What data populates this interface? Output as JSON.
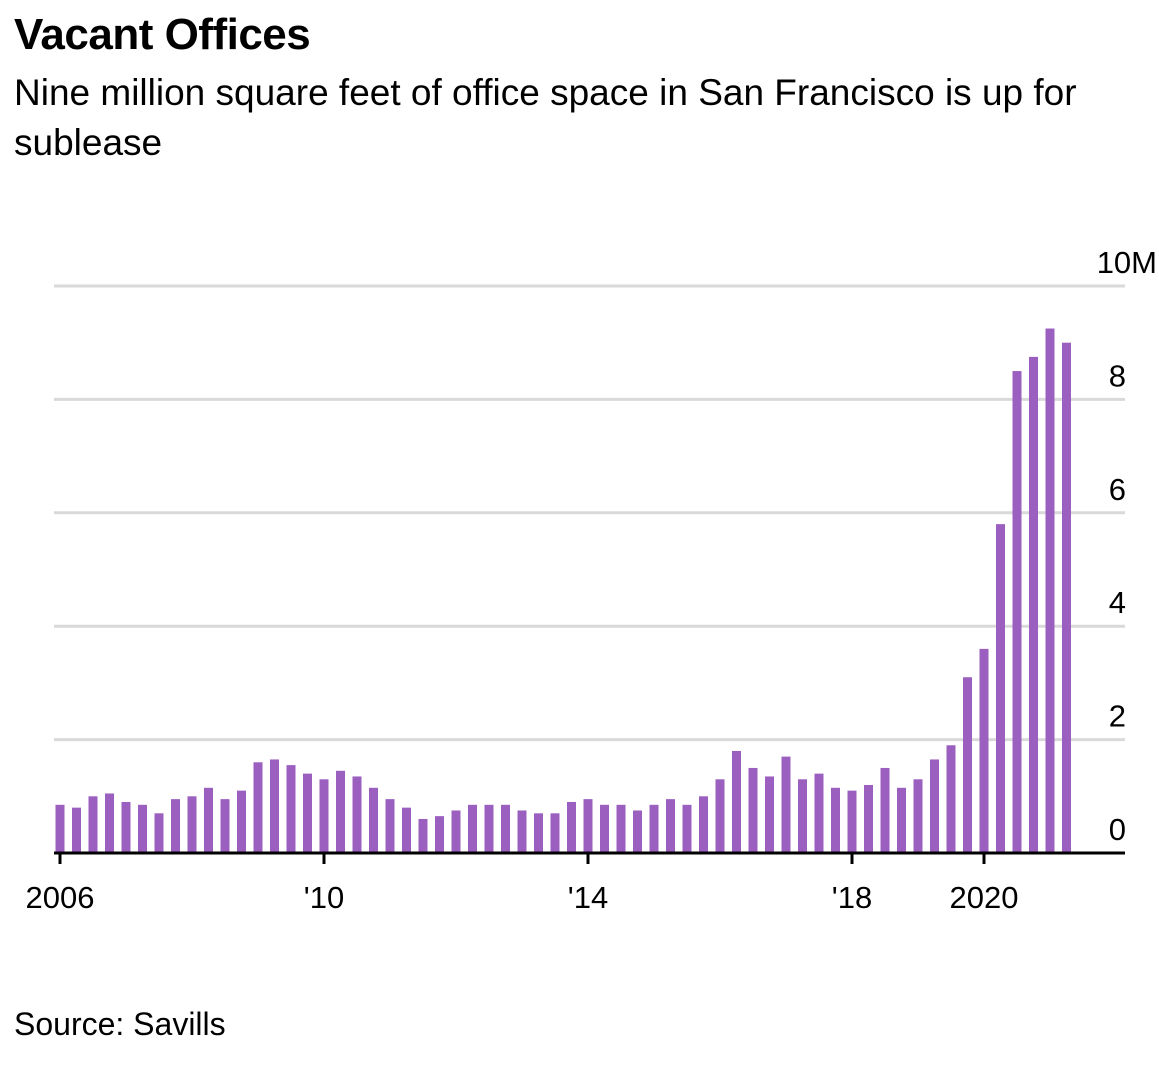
{
  "header": {
    "title": "Vacant Offices",
    "subtitle": "Nine million square feet of office space in San Francisco is up for sublease"
  },
  "footer": {
    "source": "Source: Savills"
  },
  "chart_data": {
    "type": "bar",
    "title": "Vacant Offices",
    "subtitle": "Nine million square feet of office space in San Francisco is up for sublease",
    "xlabel": "",
    "ylabel": "",
    "ylim": [
      0,
      10
    ],
    "y_unit_label": "10M",
    "y_ticks": [
      0,
      2,
      4,
      6,
      8,
      10
    ],
    "y_tick_labels": [
      "0",
      "2",
      "4",
      "6",
      "8",
      "10M"
    ],
    "x_tick_labels": [
      {
        "label": "2006",
        "year": 2006
      },
      {
        "label": "'10",
        "year": 2010
      },
      {
        "label": "'14",
        "year": 2014
      },
      {
        "label": "'18",
        "year": 2018
      },
      {
        "label": "2020",
        "year": 2020
      }
    ],
    "grid": true,
    "bar_color": "#9b5fc0",
    "frequency": "quarterly",
    "start": "2006-Q1",
    "categories": [
      "2006-Q1",
      "2006-Q2",
      "2006-Q3",
      "2006-Q4",
      "2007-Q1",
      "2007-Q2",
      "2007-Q3",
      "2007-Q4",
      "2008-Q1",
      "2008-Q2",
      "2008-Q3",
      "2008-Q4",
      "2009-Q1",
      "2009-Q2",
      "2009-Q3",
      "2009-Q4",
      "2010-Q1",
      "2010-Q2",
      "2010-Q3",
      "2010-Q4",
      "2011-Q1",
      "2011-Q2",
      "2011-Q3",
      "2011-Q4",
      "2012-Q1",
      "2012-Q2",
      "2012-Q3",
      "2012-Q4",
      "2013-Q1",
      "2013-Q2",
      "2013-Q3",
      "2013-Q4",
      "2014-Q1",
      "2014-Q2",
      "2014-Q3",
      "2014-Q4",
      "2015-Q1",
      "2015-Q2",
      "2015-Q3",
      "2015-Q4",
      "2016-Q1",
      "2016-Q2",
      "2016-Q3",
      "2016-Q4",
      "2017-Q1",
      "2017-Q2",
      "2017-Q3",
      "2017-Q4",
      "2018-Q1",
      "2018-Q2",
      "2018-Q3",
      "2018-Q4",
      "2019-Q1",
      "2019-Q2",
      "2019-Q3",
      "2019-Q4",
      "2020-Q1",
      "2020-Q2",
      "2020-Q3",
      "2020-Q4",
      "2021-Q1",
      "2021-Q2"
    ],
    "values": [
      0.85,
      0.8,
      1.0,
      1.05,
      0.9,
      0.85,
      0.7,
      0.95,
      1.0,
      1.15,
      0.95,
      1.1,
      1.6,
      1.65,
      1.55,
      1.4,
      1.3,
      1.45,
      1.35,
      1.15,
      0.95,
      0.8,
      0.6,
      0.65,
      0.75,
      0.85,
      0.85,
      0.85,
      0.75,
      0.7,
      0.7,
      0.9,
      0.95,
      0.85,
      0.85,
      0.75,
      0.85,
      0.95,
      0.85,
      1.0,
      1.3,
      1.8,
      1.5,
      1.35,
      1.7,
      1.3,
      1.4,
      1.15,
      1.1,
      1.2,
      1.5,
      1.15,
      1.3,
      1.65,
      1.9,
      3.1,
      3.6,
      5.8,
      8.5,
      8.75,
      9.25,
      9.0
    ]
  }
}
